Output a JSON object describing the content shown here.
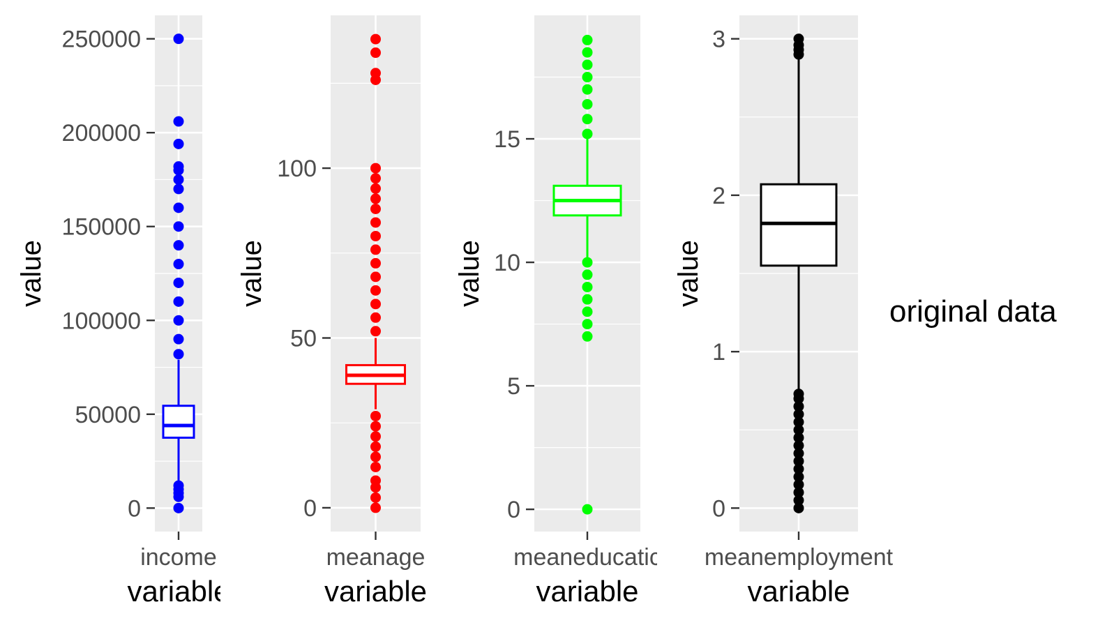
{
  "caption": "original data",
  "chart_data": [
    {
      "type": "box",
      "category": "income",
      "category_label_shown": "income",
      "xlabel": "variable",
      "ylabel": "value",
      "color": "#0000ff",
      "yticks": [
        0,
        50000,
        100000,
        150000,
        200000,
        250000
      ],
      "ytick_labels": [
        "0",
        "50000",
        "100000",
        "150000",
        "200000",
        "250000"
      ],
      "ylim": [
        -12500,
        262500
      ],
      "grid": true,
      "box": {
        "q1": 37500,
        "median": 44000,
        "q3": 54500,
        "whisker_low": 13000,
        "whisker_high": 79000
      },
      "outliers": [
        0,
        6000,
        8000,
        10000,
        12000,
        82000,
        90000,
        100000,
        110000,
        120000,
        130000,
        140000,
        150000,
        160000,
        170000,
        175000,
        180000,
        182000,
        194000,
        206000,
        250000
      ]
    },
    {
      "type": "box",
      "category": "meanage",
      "category_label_shown": "meanage",
      "xlabel": "variable",
      "ylabel": "value",
      "color": "#ff0000",
      "yticks": [
        0,
        50,
        100
      ],
      "ytick_labels": [
        "0",
        "50",
        "100"
      ],
      "ylim": [
        -7,
        145
      ],
      "grid": true,
      "box": {
        "q1": 36.5,
        "median": 39,
        "q3": 42,
        "whisker_low": 29,
        "whisker_high": 50
      },
      "outliers": [
        0,
        3,
        6,
        8,
        12,
        15,
        18,
        21,
        24,
        27,
        52,
        56,
        60,
        64,
        68,
        72,
        76,
        80,
        84,
        88,
        91,
        94,
        97,
        100,
        126,
        128,
        134,
        138
      ]
    },
    {
      "type": "box",
      "category": "meaneducation",
      "category_label_shown": "meaneducatic",
      "xlabel": "variable",
      "ylabel": "value",
      "color": "#00ff00",
      "yticks": [
        0,
        5,
        10,
        15
      ],
      "ytick_labels": [
        "0",
        "5",
        "10",
        "15"
      ],
      "ylim": [
        -0.9,
        20
      ],
      "grid": true,
      "box": {
        "q1": 11.9,
        "median": 12.5,
        "q3": 13.1,
        "whisker_low": 10.2,
        "whisker_high": 15
      },
      "outliers": [
        0,
        7,
        7.5,
        8,
        8.5,
        9,
        9.5,
        10,
        15.2,
        15.8,
        16.4,
        17,
        17.5,
        18,
        18.5,
        19
      ]
    },
    {
      "type": "box",
      "category": "meanemployment",
      "category_label_shown": "meanemployment",
      "xlabel": "variable",
      "ylabel": "value",
      "color": "#000000",
      "yticks": [
        0,
        1,
        2,
        3
      ],
      "ytick_labels": [
        "0",
        "1",
        "2",
        "3"
      ],
      "ylim": [
        -0.15,
        3.15
      ],
      "grid": true,
      "box": {
        "q1": 1.55,
        "median": 1.82,
        "q3": 2.07,
        "whisker_low": 0.75,
        "whisker_high": 2.88
      },
      "outliers": [
        0,
        0.05,
        0.1,
        0.15,
        0.2,
        0.25,
        0.3,
        0.35,
        0.4,
        0.45,
        0.5,
        0.55,
        0.6,
        0.65,
        0.7,
        0.73,
        2.9,
        2.93,
        2.96,
        3
      ]
    }
  ]
}
